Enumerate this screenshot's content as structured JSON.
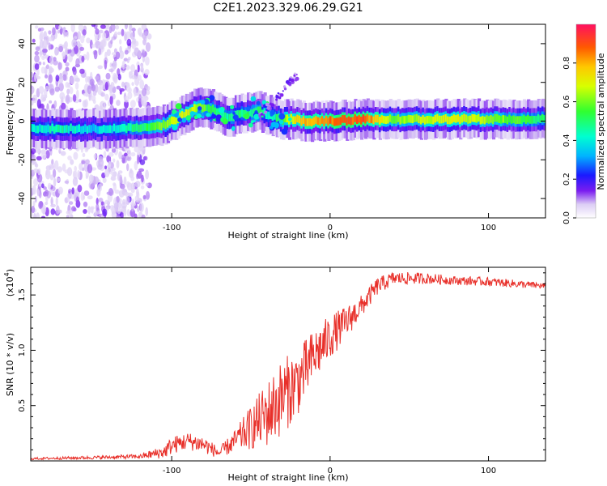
{
  "title": "C2E1.2023.329.06.29.G21",
  "colors": {
    "snr_line": "#e8302a",
    "axis": "#000000"
  },
  "chart_data": [
    {
      "type": "heatmap",
      "name": "spectrogram",
      "xlabel": "Height of straight line (km)",
      "ylabel": "Frequency (Hz)",
      "xlim": [
        -189,
        136
      ],
      "ylim": [
        -50,
        50
      ],
      "xticks": [
        -100,
        0,
        100
      ],
      "xtick_labels": [
        "-100",
        "0",
        "100"
      ],
      "yticks": [
        -40,
        -20,
        0,
        20,
        40
      ],
      "ytick_labels": [
        "-40",
        "-20",
        "0",
        "20",
        "40"
      ],
      "colorbar": {
        "label": "Normalized spectral amplitude",
        "range": [
          0,
          1
        ],
        "ticks": [
          0.0,
          0.2,
          0.4,
          0.6,
          0.8
        ],
        "tick_labels": [
          "0.0",
          "0.2",
          "0.4",
          "0.6",
          "0.8"
        ]
      },
      "ridge": {
        "x": [
          -189,
          -170,
          -150,
          -140,
          -120,
          -105,
          -95,
          -85,
          -75,
          -65,
          -55,
          -45,
          -38,
          -32,
          -25,
          -15,
          0,
          20,
          40,
          80,
          136
        ],
        "freq": [
          -4,
          -4,
          -4,
          -4,
          -3,
          -2,
          2,
          7,
          6,
          2,
          4,
          5,
          3,
          1,
          1,
          0,
          0,
          1,
          1,
          1,
          1
        ],
        "peak_amplitude": [
          0.4,
          0.45,
          0.35,
          0.4,
          0.5,
          0.6,
          0.7,
          0.65,
          0.5,
          0.45,
          0.5,
          0.5,
          0.4,
          0.55,
          0.7,
          0.8,
          0.85,
          0.9,
          0.6,
          0.7,
          0.5
        ]
      }
    },
    {
      "type": "line",
      "name": "snr",
      "xlabel": "Height of straight line (km)",
      "ylabel": "SNR (10 * v/v)",
      "scale_label": "(x10",
      "scale_exponent": "4",
      "scale_suffix": ")",
      "xlim": [
        -189,
        136
      ],
      "ylim": [
        0,
        1.75
      ],
      "xticks": [
        -100,
        0,
        100
      ],
      "xtick_labels": [
        "-100",
        "0",
        "100"
      ],
      "yticks": [
        0.5,
        1.0,
        1.5
      ],
      "ytick_labels": [
        "0.5",
        "1.0",
        "1.5"
      ],
      "envelope": {
        "x": [
          -189,
          -150,
          -120,
          -105,
          -100,
          -90,
          -80,
          -70,
          -60,
          -50,
          -40,
          -30,
          -20,
          -10,
          0,
          10,
          20,
          30,
          40,
          60,
          80,
          100,
          136
        ],
        "mean": [
          0.02,
          0.03,
          0.04,
          0.08,
          0.14,
          0.18,
          0.15,
          0.07,
          0.18,
          0.3,
          0.42,
          0.58,
          0.72,
          0.95,
          1.12,
          1.25,
          1.4,
          1.58,
          1.65,
          1.65,
          1.63,
          1.62,
          1.58
        ],
        "noise": [
          0.01,
          0.015,
          0.02,
          0.06,
          0.08,
          0.08,
          0.08,
          0.05,
          0.1,
          0.2,
          0.3,
          0.35,
          0.3,
          0.25,
          0.2,
          0.15,
          0.1,
          0.08,
          0.06,
          0.05,
          0.04,
          0.04,
          0.03
        ]
      }
    }
  ]
}
